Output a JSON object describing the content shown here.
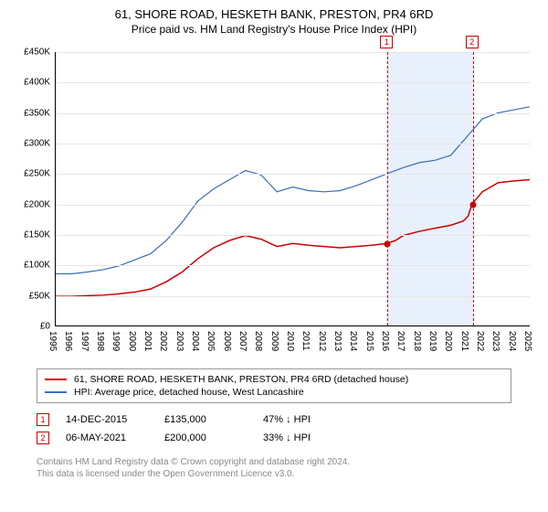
{
  "chart": {
    "title_line1": "61, SHORE ROAD, HESKETH BANK, PRESTON, PR4 6RD",
    "title_line2": "Price paid vs. HM Land Registry's House Price Index (HPI)",
    "type": "line",
    "background_color": "#ffffff",
    "grid_color": "#e5e5e5",
    "axis_color": "#000000",
    "title_fontsize": 13,
    "subtitle_fontsize": 12,
    "tick_fontsize": 10,
    "y_axis": {
      "min": 0,
      "max": 450000,
      "step": 50000,
      "ticks": [
        "£0",
        "£50K",
        "£100K",
        "£150K",
        "£200K",
        "£250K",
        "£300K",
        "£350K",
        "£400K",
        "£450K"
      ]
    },
    "x_axis": {
      "min": 1995,
      "max": 2025,
      "ticks": [
        1995,
        1996,
        1997,
        1998,
        1999,
        2000,
        2001,
        2002,
        2003,
        2004,
        2005,
        2006,
        2007,
        2008,
        2009,
        2010,
        2011,
        2012,
        2013,
        2014,
        2015,
        2016,
        2017,
        2018,
        2019,
        2020,
        2021,
        2022,
        2023,
        2024,
        2025
      ]
    },
    "series": [
      {
        "id": "subject",
        "label": "61, SHORE ROAD, HESKETH BANK, PRESTON, PR4 6RD (detached house)",
        "color": "#cc0000",
        "line_width": 1.5,
        "data": [
          [
            1995,
            48000
          ],
          [
            1996,
            48000
          ],
          [
            1997,
            49000
          ],
          [
            1998,
            50000
          ],
          [
            1999,
            52000
          ],
          [
            2000,
            55000
          ],
          [
            2001,
            60000
          ],
          [
            2002,
            72000
          ],
          [
            2003,
            88000
          ],
          [
            2004,
            110000
          ],
          [
            2005,
            128000
          ],
          [
            2006,
            140000
          ],
          [
            2007,
            148000
          ],
          [
            2008,
            142000
          ],
          [
            2009,
            130000
          ],
          [
            2010,
            135000
          ],
          [
            2011,
            132000
          ],
          [
            2012,
            130000
          ],
          [
            2013,
            128000
          ],
          [
            2014,
            130000
          ],
          [
            2015,
            132000
          ],
          [
            2015.96,
            135000
          ],
          [
            2016.5,
            140000
          ],
          [
            2017,
            148000
          ],
          [
            2018,
            155000
          ],
          [
            2019,
            160000
          ],
          [
            2020,
            165000
          ],
          [
            2020.8,
            172000
          ],
          [
            2021.1,
            180000
          ],
          [
            2021.35,
            200000
          ],
          [
            2022,
            220000
          ],
          [
            2023,
            235000
          ],
          [
            2024,
            238000
          ],
          [
            2025,
            240000
          ]
        ]
      },
      {
        "id": "hpi",
        "label": "HPI: Average price, detached house, West Lancashire",
        "color": "#3a6fb7",
        "line_width": 1.2,
        "data": [
          [
            1995,
            85000
          ],
          [
            1996,
            85000
          ],
          [
            1997,
            88000
          ],
          [
            1998,
            92000
          ],
          [
            1999,
            98000
          ],
          [
            2000,
            108000
          ],
          [
            2001,
            118000
          ],
          [
            2002,
            140000
          ],
          [
            2003,
            170000
          ],
          [
            2004,
            205000
          ],
          [
            2005,
            225000
          ],
          [
            2006,
            240000
          ],
          [
            2007,
            255000
          ],
          [
            2008,
            248000
          ],
          [
            2009,
            220000
          ],
          [
            2010,
            228000
          ],
          [
            2011,
            222000
          ],
          [
            2012,
            220000
          ],
          [
            2013,
            222000
          ],
          [
            2014,
            230000
          ],
          [
            2015,
            240000
          ],
          [
            2016,
            250000
          ],
          [
            2017,
            260000
          ],
          [
            2018,
            268000
          ],
          [
            2019,
            272000
          ],
          [
            2020,
            280000
          ],
          [
            2021,
            310000
          ],
          [
            2022,
            340000
          ],
          [
            2023,
            350000
          ],
          [
            2024,
            355000
          ],
          [
            2025,
            360000
          ]
        ]
      }
    ],
    "sale_points": [
      {
        "marker": "1",
        "x": 2015.96,
        "price": 135000,
        "color": "#cc0000"
      },
      {
        "marker": "2",
        "x": 2021.35,
        "price": 200000,
        "color": "#cc0000"
      }
    ],
    "guide_band": {
      "fill": "#e8f0fb",
      "border_color": "#b0c4e0",
      "start": 2015.96,
      "end": 2021.35
    }
  },
  "legend": {
    "items": [
      {
        "color": "#cc0000",
        "label": "61, SHORE ROAD, HESKETH BANK, PRESTON, PR4 6RD (detached house)"
      },
      {
        "color": "#3a6fb7",
        "label": "HPI: Average price, detached house, West Lancashire"
      }
    ]
  },
  "sales": [
    {
      "marker": "1",
      "marker_color": "#cc0000",
      "date": "14-DEC-2015",
      "price": "£135,000",
      "hpi_delta": "47% ↓ HPI"
    },
    {
      "marker": "2",
      "marker_color": "#cc0000",
      "date": "06-MAY-2021",
      "price": "£200,000",
      "hpi_delta": "33% ↓ HPI"
    }
  ],
  "footer": {
    "line1": "Contains HM Land Registry data © Crown copyright and database right 2024.",
    "line2": "This data is licensed under the Open Government Licence v3.0."
  }
}
